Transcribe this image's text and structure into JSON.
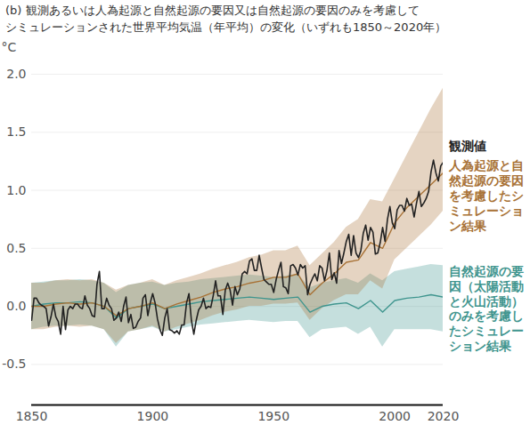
{
  "chart_data": {
    "type": "line",
    "title": "(b) 観測あるいは人為起源と自然起源の要因又は自然起源の要因のみを考慮して",
    "subtitle": "シミュレーションされた世界平均気温（年平均）の変化（いずれも1850～2020年）",
    "y_label": "°C",
    "xlim": [
      1850,
      2020
    ],
    "xticks": [
      1850,
      1900,
      1950,
      2000,
      2020
    ],
    "ylim": [
      -0.85,
      2.0
    ],
    "yticks": [
      -0.5,
      {
        "value": 0,
        "label": "0.0"
      },
      0.5,
      {
        "value": 1,
        "label": "1.0"
      },
      1.5,
      {
        "value": 2,
        "label": "2.0"
      }
    ],
    "grid": true,
    "series": [
      {
        "name": "自然起源の要因（太陽活動と火山活動）のみを考慮したシミュレーション結果",
        "color": "#3f958e",
        "x": [
          1850,
          1855,
          1860,
          1865,
          1870,
          1875,
          1880,
          1885,
          1890,
          1895,
          1900,
          1905,
          1910,
          1915,
          1920,
          1925,
          1930,
          1935,
          1940,
          1945,
          1950,
          1955,
          1960,
          1965,
          1970,
          1975,
          1980,
          1985,
          1990,
          1995,
          2000,
          2005,
          2010,
          2015,
          2020
        ],
        "values": [
          0.0,
          0.02,
          0.03,
          0.03,
          0.04,
          0.03,
          0.0,
          -0.1,
          -0.02,
          0.0,
          0.02,
          -0.02,
          0.0,
          0.02,
          0.04,
          0.05,
          0.06,
          0.07,
          0.08,
          0.07,
          0.06,
          0.07,
          0.08,
          -0.05,
          0.0,
          0.02,
          0.03,
          -0.02,
          0.05,
          -0.05,
          0.05,
          0.07,
          0.08,
          0.1,
          0.08
        ],
        "lower": [
          -0.2,
          -0.18,
          -0.17,
          -0.17,
          -0.16,
          -0.17,
          -0.2,
          -0.35,
          -0.22,
          -0.2,
          -0.18,
          -0.22,
          -0.2,
          -0.18,
          -0.16,
          -0.15,
          -0.14,
          -0.13,
          -0.12,
          -0.13,
          -0.14,
          -0.13,
          -0.13,
          -0.27,
          -0.2,
          -0.19,
          -0.18,
          -0.24,
          -0.18,
          -0.35,
          -0.2,
          -0.2,
          -0.2,
          -0.2,
          -0.22
        ],
        "upper": [
          0.2,
          0.21,
          0.22,
          0.22,
          0.23,
          0.22,
          0.2,
          0.12,
          0.18,
          0.2,
          0.21,
          0.18,
          0.2,
          0.21,
          0.23,
          0.24,
          0.25,
          0.26,
          0.27,
          0.26,
          0.25,
          0.26,
          0.28,
          0.16,
          0.2,
          0.22,
          0.24,
          0.2,
          0.28,
          0.22,
          0.3,
          0.32,
          0.34,
          0.36,
          0.35
        ]
      },
      {
        "name": "人為起源と自然起源の要因を考慮したシミュレーション結果",
        "color": "#a87236",
        "x": [
          1850,
          1855,
          1860,
          1865,
          1870,
          1875,
          1880,
          1885,
          1890,
          1895,
          1900,
          1905,
          1910,
          1915,
          1920,
          1925,
          1930,
          1935,
          1940,
          1945,
          1950,
          1955,
          1960,
          1965,
          1970,
          1975,
          1980,
          1985,
          1990,
          1995,
          2000,
          2005,
          2010,
          2015,
          2020
        ],
        "values": [
          0.0,
          0.0,
          0.02,
          0.03,
          0.02,
          0.03,
          0.0,
          -0.08,
          -0.02,
          0.0,
          0.03,
          -0.02,
          0.02,
          0.05,
          0.08,
          0.12,
          0.15,
          0.17,
          0.2,
          0.22,
          0.25,
          0.25,
          0.28,
          0.1,
          0.2,
          0.28,
          0.38,
          0.4,
          0.55,
          0.5,
          0.72,
          0.85,
          0.95,
          1.05,
          1.15
        ],
        "lower": [
          -0.2,
          -0.2,
          -0.18,
          -0.17,
          -0.18,
          -0.17,
          -0.2,
          -0.32,
          -0.22,
          -0.2,
          -0.17,
          -0.22,
          -0.18,
          -0.15,
          -0.12,
          -0.08,
          -0.05,
          -0.03,
          0.0,
          0.0,
          0.02,
          0.02,
          0.03,
          -0.12,
          -0.02,
          0.05,
          0.1,
          0.1,
          0.22,
          0.15,
          0.4,
          0.5,
          0.6,
          0.7,
          0.82
        ],
        "upper": [
          0.2,
          0.2,
          0.22,
          0.23,
          0.22,
          0.23,
          0.2,
          0.14,
          0.18,
          0.2,
          0.23,
          0.18,
          0.22,
          0.25,
          0.28,
          0.32,
          0.35,
          0.38,
          0.42,
          0.44,
          0.48,
          0.48,
          0.52,
          0.35,
          0.45,
          0.55,
          0.68,
          0.75,
          0.92,
          0.9,
          1.1,
          1.3,
          1.5,
          1.7,
          1.88
        ]
      },
      {
        "name": "観測値",
        "color": "#222222",
        "x": [
          1850,
          1851,
          1852,
          1853,
          1854,
          1855,
          1856,
          1857,
          1858,
          1859,
          1860,
          1861,
          1862,
          1863,
          1864,
          1865,
          1866,
          1867,
          1868,
          1869,
          1870,
          1871,
          1872,
          1873,
          1874,
          1875,
          1876,
          1877,
          1878,
          1879,
          1880,
          1881,
          1882,
          1883,
          1884,
          1885,
          1886,
          1887,
          1888,
          1889,
          1890,
          1891,
          1892,
          1893,
          1894,
          1895,
          1896,
          1897,
          1898,
          1899,
          1900,
          1901,
          1902,
          1903,
          1904,
          1905,
          1906,
          1907,
          1908,
          1909,
          1910,
          1911,
          1912,
          1913,
          1914,
          1915,
          1916,
          1917,
          1918,
          1919,
          1920,
          1921,
          1922,
          1923,
          1924,
          1925,
          1926,
          1927,
          1928,
          1929,
          1930,
          1931,
          1932,
          1933,
          1934,
          1935,
          1936,
          1937,
          1938,
          1939,
          1940,
          1941,
          1942,
          1943,
          1944,
          1945,
          1946,
          1947,
          1948,
          1949,
          1950,
          1951,
          1952,
          1953,
          1954,
          1955,
          1956,
          1957,
          1958,
          1959,
          1960,
          1961,
          1962,
          1963,
          1964,
          1965,
          1966,
          1967,
          1968,
          1969,
          1970,
          1971,
          1972,
          1973,
          1974,
          1975,
          1976,
          1977,
          1978,
          1979,
          1980,
          1981,
          1982,
          1983,
          1984,
          1985,
          1986,
          1987,
          1988,
          1989,
          1990,
          1991,
          1992,
          1993,
          1994,
          1995,
          1996,
          1997,
          1998,
          1999,
          2000,
          2001,
          2002,
          2003,
          2004,
          2005,
          2006,
          2007,
          2008,
          2009,
          2010,
          2011,
          2012,
          2013,
          2014,
          2015,
          2016,
          2017,
          2018,
          2019,
          2020
        ],
        "values": [
          -0.12,
          0.07,
          0.07,
          0.03,
          0.01,
          0.0,
          -0.02,
          -0.17,
          -0.09,
          0.02,
          -0.09,
          -0.13,
          -0.24,
          0.0,
          -0.2,
          -0.03,
          0.0,
          -0.02,
          0.02,
          0.02,
          -0.01,
          -0.02,
          0.09,
          0.01,
          -0.02,
          -0.08,
          -0.09,
          0.19,
          0.3,
          -0.02,
          -0.02,
          0.07,
          0.01,
          -0.02,
          -0.12,
          -0.1,
          -0.05,
          -0.13,
          0.0,
          0.08,
          -0.14,
          -0.07,
          -0.19,
          -0.18,
          -0.13,
          -0.1,
          0.07,
          0.1,
          -0.08,
          0.03,
          0.11,
          0.03,
          -0.11,
          -0.2,
          -0.25,
          -0.1,
          -0.02,
          -0.2,
          -0.21,
          -0.23,
          -0.21,
          -0.24,
          -0.16,
          -0.16,
          0.03,
          0.11,
          -0.12,
          -0.24,
          -0.12,
          -0.03,
          0.0,
          0.07,
          -0.02,
          0.0,
          -0.01,
          0.09,
          0.22,
          0.09,
          0.09,
          -0.07,
          0.14,
          0.2,
          0.14,
          0.01,
          0.17,
          0.1,
          0.15,
          0.28,
          0.3,
          0.28,
          0.39,
          0.41,
          0.31,
          0.31,
          0.44,
          0.33,
          0.23,
          0.21,
          0.19,
          0.19,
          0.12,
          0.23,
          0.31,
          0.38,
          0.17,
          0.16,
          0.11,
          0.35,
          0.36,
          0.33,
          0.27,
          0.36,
          0.33,
          0.35,
          0.1,
          0.19,
          0.24,
          0.28,
          0.22,
          0.35,
          0.33,
          0.22,
          0.31,
          0.46,
          0.23,
          0.29,
          0.2,
          0.48,
          0.37,
          0.46,
          0.56,
          0.62,
          0.44,
          0.61,
          0.46,
          0.42,
          0.48,
          0.63,
          0.7,
          0.57,
          0.68,
          0.64,
          0.45,
          0.46,
          0.55,
          0.68,
          0.56,
          0.75,
          0.86,
          0.72,
          0.67,
          0.83,
          0.87,
          0.87,
          0.82,
          0.93,
          0.87,
          0.88,
          0.77,
          0.89,
          0.99,
          0.86,
          0.89,
          0.93,
          0.99,
          1.16,
          1.26,
          1.15,
          1.08,
          1.21,
          1.24
        ]
      }
    ]
  }
}
